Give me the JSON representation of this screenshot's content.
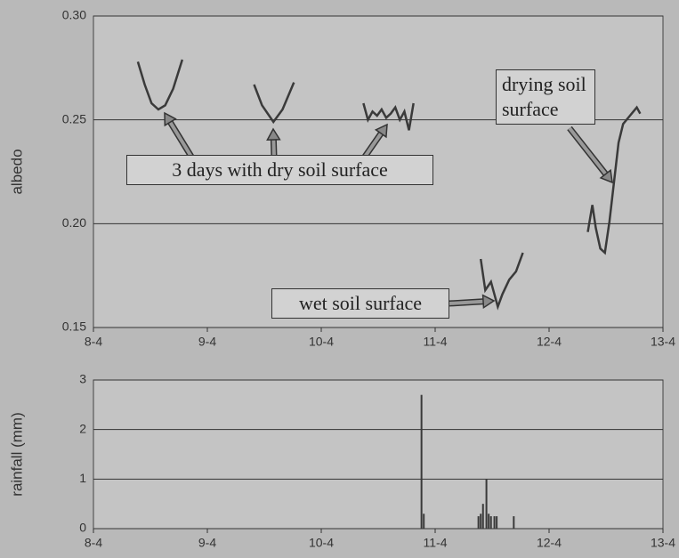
{
  "chart_data": [
    {
      "type": "line",
      "y_label": "albedo",
      "xlim": [
        8,
        13
      ],
      "xticks": [
        {
          "value": 8,
          "label": "8-4"
        },
        {
          "value": 9,
          "label": "9-4"
        },
        {
          "value": 10,
          "label": "10-4"
        },
        {
          "value": 11,
          "label": "11-4"
        },
        {
          "value": 12,
          "label": "12-4"
        },
        {
          "value": 13,
          "label": "13-4"
        }
      ],
      "ylim": [
        0.15,
        0.3
      ],
      "yticks": [
        0.15,
        {
          "value": 0.2,
          "label": "0.20"
        },
        0.25,
        {
          "value": 0.3,
          "label": "0.30"
        }
      ],
      "grid": true,
      "series": [
        {
          "color": "#3a3a3a",
          "x": [
            8.39,
            8.45,
            8.51,
            8.57,
            8.63,
            8.7,
            8.78,
            null,
            9.41,
            9.48,
            9.58,
            9.66,
            9.76,
            null,
            10.37,
            10.41,
            10.45,
            10.49,
            10.53,
            10.57,
            10.61,
            10.65,
            10.69,
            10.73,
            10.77,
            10.81,
            null,
            11.4,
            11.44,
            11.49,
            11.55,
            11.59,
            11.65,
            11.71,
            11.77,
            null,
            12.34,
            12.38,
            12.41,
            12.45,
            12.49,
            12.53,
            12.57,
            12.61,
            12.65,
            12.71,
            12.77,
            12.8
          ],
          "values": [
            0.278,
            0.267,
            0.258,
            0.255,
            0.257,
            0.265,
            0.279,
            null,
            0.267,
            0.257,
            0.249,
            0.255,
            0.268,
            null,
            0.258,
            0.25,
            0.254,
            0.252,
            0.255,
            0.251,
            0.253,
            0.256,
            0.25,
            0.254,
            0.245,
            0.258,
            null,
            0.183,
            0.168,
            0.172,
            0.16,
            0.166,
            0.173,
            0.177,
            0.186,
            null,
            0.196,
            0.209,
            0.198,
            0.188,
            0.186,
            0.201,
            0.22,
            0.239,
            0.248,
            0.252,
            0.256,
            0.253
          ]
        }
      ],
      "annotations": [
        "3 days with dry soil surface",
        "wet soil surface",
        "drying soil surface"
      ]
    },
    {
      "type": "bar",
      "y_label": "rainfall (mm)",
      "xlim": [
        8,
        13
      ],
      "xticks": [
        {
          "value": 8,
          "label": "8-4"
        },
        {
          "value": 9,
          "label": "9-4"
        },
        {
          "value": 10,
          "label": "10-4"
        },
        {
          "value": 11,
          "label": "11-4"
        },
        {
          "value": 12,
          "label": "12-4"
        },
        {
          "value": 13,
          "label": "13-4"
        }
      ],
      "ylim": [
        0,
        3
      ],
      "yticks": [
        0,
        1,
        2,
        3
      ],
      "grid": true,
      "color": "#3a3a3a",
      "x": [
        10.88,
        10.9,
        11.38,
        11.4,
        11.42,
        11.45,
        11.47,
        11.49,
        11.52,
        11.54,
        11.69
      ],
      "values": [
        2.7,
        0.3,
        0.25,
        0.3,
        0.5,
        1.0,
        0.3,
        0.25,
        0.25,
        0.25,
        0.25
      ]
    }
  ]
}
